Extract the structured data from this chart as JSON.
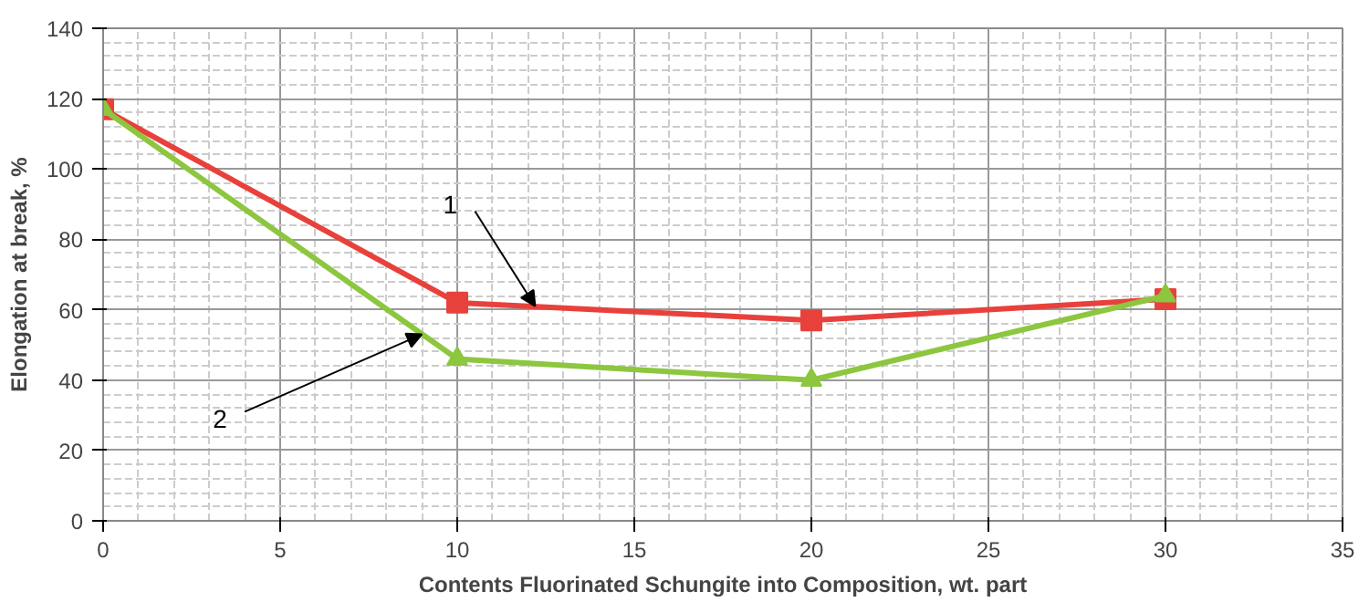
{
  "chart_data": {
    "type": "line",
    "xlabel": "Contents Fluorinated Schungite into Composition, wt. part",
    "ylabel": "Elongation at break, %",
    "x": [
      0,
      10,
      20,
      30
    ],
    "series": [
      {
        "color": "#e8413c",
        "values": [
          117,
          62,
          57,
          63
        ],
        "marker": "square"
      },
      {
        "color": "#8dc63f",
        "values": [
          117,
          46,
          40,
          64
        ],
        "marker": "triangle"
      }
    ],
    "annotations": [
      {
        "text": "1",
        "x": 12.2,
        "y": 61
      },
      {
        "text": "2",
        "x": 9,
        "y": 53
      }
    ],
    "xlim": [
      0,
      35
    ],
    "xticks": [
      0,
      5,
      10,
      15,
      20,
      25,
      30,
      35
    ],
    "ylim": [
      0,
      140
    ],
    "yticks": [
      0,
      20,
      40,
      60,
      80,
      100,
      120,
      140
    ],
    "grid": true
  }
}
